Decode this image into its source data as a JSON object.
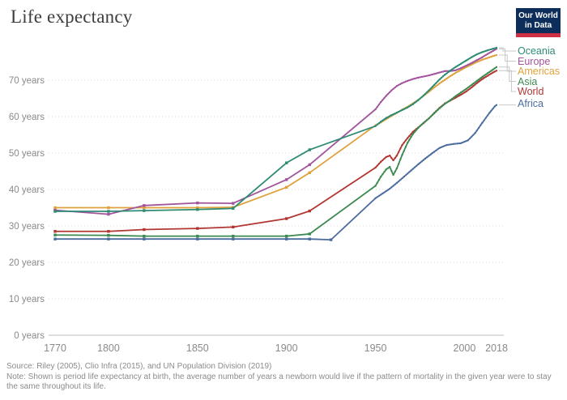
{
  "header": {
    "title": "Life expectancy",
    "logo": {
      "line1": "Our World",
      "line2": "in Data",
      "bg_color": "#0d2e5a",
      "bar_color": "#ce3145"
    }
  },
  "chart_data": {
    "type": "line",
    "title": "Life expectancy",
    "xlabel": "",
    "ylabel": "",
    "xlim": [
      1770,
      2018
    ],
    "ylim": [
      0,
      80
    ],
    "grid": "dotted-horizontal",
    "legend_position": "right",
    "x_ticks": [
      1770,
      1800,
      1850,
      1900,
      1950,
      2000,
      2018
    ],
    "y_ticks": [
      {
        "value": 0,
        "label": "0 years"
      },
      {
        "value": 10,
        "label": "10 years"
      },
      {
        "value": 20,
        "label": "20 years"
      },
      {
        "value": 30,
        "label": "30 years"
      },
      {
        "value": 40,
        "label": "40 years"
      },
      {
        "value": 50,
        "label": "50 years"
      },
      {
        "value": 60,
        "label": "60 years"
      },
      {
        "value": 70,
        "label": "70 years"
      }
    ],
    "marker_note": "square markers on sparse historical points; dense annual dots after 1950",
    "series": [
      {
        "name": "Oceania",
        "color": "#2e8b74",
        "points": [
          [
            1770,
            34.0
          ],
          [
            1800,
            34.0
          ],
          [
            1820,
            34.2
          ],
          [
            1850,
            34.5
          ],
          [
            1870,
            34.8
          ],
          [
            1900,
            47.3
          ],
          [
            1913,
            50.9
          ],
          [
            1950,
            57.4
          ],
          [
            1953,
            58.6
          ],
          [
            1956,
            59.6
          ],
          [
            1959,
            60.4
          ],
          [
            1962,
            61.1
          ],
          [
            1965,
            61.8
          ],
          [
            1968,
            62.5
          ],
          [
            1971,
            63.4
          ],
          [
            1974,
            64.5
          ],
          [
            1977,
            65.8
          ],
          [
            1980,
            67.2
          ],
          [
            1983,
            68.7
          ],
          [
            1986,
            70.2
          ],
          [
            1989,
            71.5
          ],
          [
            1992,
            72.6
          ],
          [
            1995,
            73.6
          ],
          [
            1998,
            74.5
          ],
          [
            2001,
            75.4
          ],
          [
            2004,
            76.3
          ],
          [
            2007,
            77.1
          ],
          [
            2010,
            77.7
          ],
          [
            2013,
            78.2
          ],
          [
            2016,
            78.6
          ],
          [
            2018,
            78.9
          ]
        ]
      },
      {
        "name": "Europe",
        "color": "#a2559c",
        "points": [
          [
            1770,
            34.3
          ],
          [
            1800,
            33.2
          ],
          [
            1820,
            35.6
          ],
          [
            1850,
            36.3
          ],
          [
            1870,
            36.2
          ],
          [
            1900,
            42.7
          ],
          [
            1913,
            46.8
          ],
          [
            1950,
            62.0
          ],
          [
            1953,
            64.0
          ],
          [
            1956,
            65.7
          ],
          [
            1959,
            67.2
          ],
          [
            1962,
            68.4
          ],
          [
            1965,
            69.2
          ],
          [
            1968,
            69.8
          ],
          [
            1971,
            70.3
          ],
          [
            1974,
            70.7
          ],
          [
            1977,
            71.0
          ],
          [
            1980,
            71.3
          ],
          [
            1983,
            71.7
          ],
          [
            1986,
            72.1
          ],
          [
            1989,
            72.5
          ],
          [
            1992,
            72.5
          ],
          [
            1995,
            72.7
          ],
          [
            1998,
            73.3
          ],
          [
            2001,
            74.0
          ],
          [
            2004,
            74.7
          ],
          [
            2007,
            75.5
          ],
          [
            2010,
            76.3
          ],
          [
            2013,
            77.2
          ],
          [
            2016,
            78.0
          ],
          [
            2018,
            78.6
          ]
        ]
      },
      {
        "name": "Americas",
        "color": "#dfa13b",
        "points": [
          [
            1770,
            35.0
          ],
          [
            1800,
            35.0
          ],
          [
            1820,
            35.0
          ],
          [
            1850,
            35.0
          ],
          [
            1870,
            35.1
          ],
          [
            1900,
            40.6
          ],
          [
            1913,
            44.6
          ],
          [
            1950,
            57.6
          ],
          [
            1953,
            58.4
          ],
          [
            1956,
            59.3
          ],
          [
            1959,
            60.2
          ],
          [
            1962,
            61.0
          ],
          [
            1965,
            61.9
          ],
          [
            1968,
            62.7
          ],
          [
            1971,
            63.6
          ],
          [
            1974,
            64.6
          ],
          [
            1977,
            65.7
          ],
          [
            1980,
            66.8
          ],
          [
            1983,
            68.0
          ],
          [
            1986,
            69.1
          ],
          [
            1989,
            70.1
          ],
          [
            1992,
            71.1
          ],
          [
            1995,
            72.0
          ],
          [
            1998,
            72.8
          ],
          [
            2001,
            73.6
          ],
          [
            2004,
            74.3
          ],
          [
            2007,
            75.0
          ],
          [
            2010,
            75.6
          ],
          [
            2013,
            76.1
          ],
          [
            2016,
            76.6
          ],
          [
            2018,
            76.9
          ]
        ]
      },
      {
        "name": "Asia",
        "color": "#3d8a51",
        "points": [
          [
            1770,
            27.5
          ],
          [
            1800,
            27.4
          ],
          [
            1820,
            27.2
          ],
          [
            1850,
            27.2
          ],
          [
            1870,
            27.2
          ],
          [
            1900,
            27.2
          ],
          [
            1913,
            27.8
          ],
          [
            1950,
            41.0
          ],
          [
            1953,
            43.5
          ],
          [
            1956,
            45.5
          ],
          [
            1958,
            46.2
          ],
          [
            1960,
            44.0
          ],
          [
            1962,
            45.8
          ],
          [
            1965,
            49.5
          ],
          [
            1968,
            52.8
          ],
          [
            1971,
            55.2
          ],
          [
            1974,
            56.9
          ],
          [
            1977,
            58.3
          ],
          [
            1980,
            59.5
          ],
          [
            1983,
            60.9
          ],
          [
            1986,
            62.3
          ],
          [
            1989,
            63.5
          ],
          [
            1992,
            64.5
          ],
          [
            1995,
            65.6
          ],
          [
            1998,
            66.6
          ],
          [
            2001,
            67.6
          ],
          [
            2004,
            68.7
          ],
          [
            2007,
            69.8
          ],
          [
            2010,
            70.9
          ],
          [
            2013,
            71.9
          ],
          [
            2016,
            72.9
          ],
          [
            2018,
            73.6
          ]
        ]
      },
      {
        "name": "World",
        "color": "#b13732",
        "points": [
          [
            1770,
            28.5
          ],
          [
            1800,
            28.5
          ],
          [
            1820,
            29.0
          ],
          [
            1850,
            29.3
          ],
          [
            1870,
            29.7
          ],
          [
            1900,
            32.0
          ],
          [
            1913,
            34.1
          ],
          [
            1950,
            46.0
          ],
          [
            1953,
            47.6
          ],
          [
            1956,
            48.9
          ],
          [
            1958,
            49.3
          ],
          [
            1960,
            48.0
          ],
          [
            1962,
            49.3
          ],
          [
            1965,
            52.2
          ],
          [
            1968,
            54.1
          ],
          [
            1971,
            55.8
          ],
          [
            1974,
            57.0
          ],
          [
            1977,
            58.2
          ],
          [
            1980,
            59.5
          ],
          [
            1983,
            61.0
          ],
          [
            1986,
            62.4
          ],
          [
            1989,
            63.6
          ],
          [
            1992,
            64.4
          ],
          [
            1995,
            65.2
          ],
          [
            1998,
            66.0
          ],
          [
            2001,
            66.9
          ],
          [
            2004,
            68.0
          ],
          [
            2007,
            69.2
          ],
          [
            2010,
            70.3
          ],
          [
            2013,
            71.2
          ],
          [
            2016,
            72.1
          ],
          [
            2018,
            72.6
          ]
        ]
      },
      {
        "name": "Africa",
        "color": "#4c6ca0",
        "points": [
          [
            1770,
            26.4
          ],
          [
            1800,
            26.4
          ],
          [
            1820,
            26.4
          ],
          [
            1850,
            26.4
          ],
          [
            1870,
            26.4
          ],
          [
            1900,
            26.4
          ],
          [
            1913,
            26.4
          ],
          [
            1925,
            26.2
          ],
          [
            1950,
            37.6
          ],
          [
            1954,
            38.9
          ],
          [
            1958,
            40.2
          ],
          [
            1962,
            41.8
          ],
          [
            1966,
            43.5
          ],
          [
            1970,
            45.2
          ],
          [
            1974,
            46.9
          ],
          [
            1978,
            48.5
          ],
          [
            1982,
            50.0
          ],
          [
            1986,
            51.4
          ],
          [
            1990,
            52.2
          ],
          [
            1994,
            52.5
          ],
          [
            1998,
            52.7
          ],
          [
            2002,
            53.5
          ],
          [
            2006,
            55.5
          ],
          [
            2010,
            58.3
          ],
          [
            2014,
            61.0
          ],
          [
            2017,
            62.8
          ],
          [
            2018,
            63.2
          ]
        ]
      }
    ]
  },
  "footer": {
    "source": "Source: Riley (2005), Clio Infra (2015), and UN Population Division (2019)",
    "note": "Note: Shown is period life expectancy at birth, the average number of years a newborn would live if the pattern of mortality in the given year were to stay the same throughout its life."
  }
}
